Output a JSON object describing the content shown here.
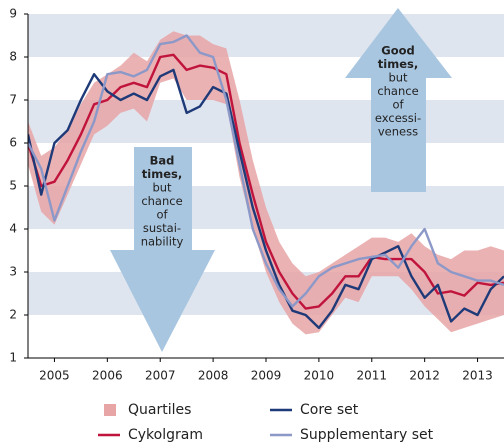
{
  "chart_data": {
    "type": "line",
    "x": [
      2005,
      2005.25,
      2005.5,
      2005.75,
      2006,
      2006.25,
      2006.5,
      2006.75,
      2007,
      2007.25,
      2007.5,
      2007.75,
      2008,
      2008.25,
      2008.5,
      2008.75,
      2009,
      2009.25,
      2009.5,
      2009.75,
      2010,
      2010.25,
      2010.5,
      2010.75,
      2011,
      2011.25,
      2011.5,
      2011.75,
      2012,
      2012.25,
      2012.5,
      2012.75,
      2013,
      2013.25,
      2013.5,
      2013.75,
      2014
    ],
    "xlim": [
      2005,
      2014
    ],
    "xticks": [
      {
        "value": 2005.5,
        "label": "2005"
      },
      {
        "value": 2006.5,
        "label": "2006"
      },
      {
        "value": 2007.5,
        "label": "2007"
      },
      {
        "value": 2008.5,
        "label": "2008"
      },
      {
        "value": 2009.5,
        "label": "2009"
      },
      {
        "value": 2010.5,
        "label": "2010"
      },
      {
        "value": 2011.5,
        "label": "2011"
      },
      {
        "value": 2012.5,
        "label": "2012"
      },
      {
        "value": 2013.5,
        "label": "2013"
      }
    ],
    "ylim": [
      1,
      9
    ],
    "yticks": [
      1,
      2,
      3,
      4,
      5,
      6,
      7,
      8,
      9
    ],
    "band_color": "#dfe5ef",
    "series": [
      {
        "name": "Quartiles",
        "color": "#e8a5a6",
        "high": [
          6.5,
          5.7,
          5.9,
          6.3,
          6.9,
          7.4,
          7.6,
          7.8,
          8.1,
          7.9,
          8.4,
          8.6,
          8.5,
          8.5,
          8.3,
          8.2,
          7.0,
          5.6,
          4.5,
          3.7,
          3.2,
          2.9,
          3.0,
          3.2,
          3.4,
          3.6,
          3.8,
          3.8,
          3.7,
          3.9,
          3.6,
          3.4,
          3.3,
          3.5,
          3.5,
          3.6,
          3.5
        ],
        "low": [
          5.5,
          4.4,
          4.1,
          4.8,
          5.5,
          6.2,
          6.4,
          6.7,
          6.8,
          6.5,
          7.4,
          7.5,
          7.0,
          7.0,
          7.0,
          6.9,
          5.2,
          4.0,
          3.0,
          2.3,
          1.8,
          1.55,
          1.6,
          2.0,
          2.4,
          2.3,
          2.9,
          2.9,
          2.9,
          2.6,
          2.2,
          1.9,
          1.6,
          1.7,
          1.8,
          1.9,
          2.0
        ]
      },
      {
        "name": "Cykolgram",
        "color": "#c0143c",
        "values": [
          6.0,
          5.0,
          5.1,
          5.6,
          6.2,
          6.9,
          7.0,
          7.3,
          7.4,
          7.3,
          8.0,
          8.05,
          7.7,
          7.8,
          7.75,
          7.6,
          6.0,
          4.8,
          3.7,
          3.0,
          2.5,
          2.15,
          2.2,
          2.5,
          2.9,
          2.9,
          3.35,
          3.3,
          3.3,
          3.3,
          3.0,
          2.5,
          2.55,
          2.45,
          2.75,
          2.7,
          2.75
        ]
      },
      {
        "name": "Core set",
        "color": "#1f3a78",
        "values": [
          6.2,
          4.8,
          6.0,
          6.3,
          7.0,
          7.6,
          7.2,
          7.0,
          7.15,
          7.0,
          7.55,
          7.7,
          6.7,
          6.85,
          7.3,
          7.15,
          5.8,
          4.5,
          3.5,
          2.7,
          2.1,
          2.0,
          1.7,
          2.1,
          2.7,
          2.6,
          3.3,
          3.45,
          3.6,
          2.9,
          2.4,
          2.7,
          1.85,
          2.15,
          2.0,
          2.6,
          2.9
        ]
      },
      {
        "name": "Supplementary set",
        "color": "#8c98c8",
        "values": [
          6.0,
          5.4,
          4.2,
          5.0,
          5.8,
          6.5,
          7.6,
          7.65,
          7.55,
          7.7,
          8.3,
          8.35,
          8.5,
          8.1,
          8.0,
          7.0,
          5.5,
          4.0,
          3.2,
          2.6,
          2.2,
          2.5,
          2.9,
          3.1,
          3.2,
          3.3,
          3.35,
          3.4,
          3.1,
          3.6,
          4.0,
          3.2,
          3.0,
          2.9,
          2.8,
          2.8,
          2.7
        ]
      }
    ],
    "annotations": [
      {
        "bold": [
          "Bad",
          "times,"
        ],
        "text": [
          "but",
          "chance",
          "of",
          "sustai-",
          "nability"
        ]
      },
      {
        "bold": [
          "Good",
          "times,"
        ],
        "text": [
          "but",
          "chance",
          "of",
          "excessi-",
          "veness"
        ]
      }
    ]
  }
}
